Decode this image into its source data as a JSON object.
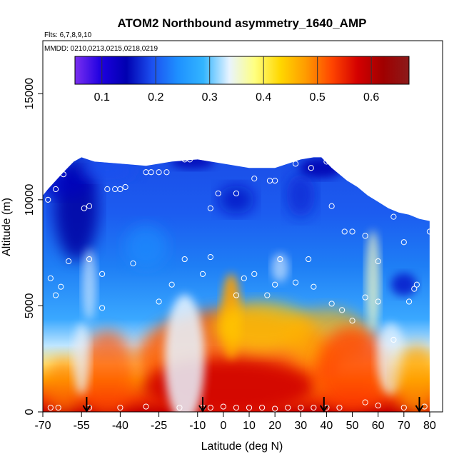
{
  "chart_data": {
    "type": "heatmap",
    "title": "ATOM2 Northbound asymmetry_1640_AMP",
    "flights_label": "Flts: 6,7,8,9,10",
    "dates_label": "MMDD: 0210,0213,0215,0218,0219",
    "xlabel": "Latitude (deg N)",
    "ylabel": "Altitude (m)",
    "xlim": [
      -70,
      85
    ],
    "ylim": [
      0,
      17500
    ],
    "x_ticks": [
      -70,
      -55,
      -40,
      -25,
      -10,
      0,
      10,
      20,
      30,
      40,
      50,
      60,
      70,
      80
    ],
    "x_tick_labels": [
      "-70",
      "-55",
      "-40",
      "-25",
      "-10",
      "0",
      "10",
      "20",
      "30",
      "40",
      "50",
      "60",
      "70",
      "80"
    ],
    "y_ticks": [
      0,
      5000,
      10000,
      15000
    ],
    "y_tick_labels": [
      "0",
      "5000",
      "10000",
      "15000"
    ],
    "colorbar": {
      "range": [
        0.05,
        0.67
      ],
      "ticks": [
        0.1,
        0.2,
        0.3,
        0.4,
        0.5,
        0.6
      ],
      "tick_labels": [
        "0.1",
        "0.2",
        "0.3",
        "0.4",
        "0.5",
        "0.6"
      ],
      "stops": [
        "#7b2ff0",
        "#1e00e0",
        "#0000b0",
        "#1c50f0",
        "#1e90ff",
        "#33b5ff",
        "#e8f4ff",
        "#ffff80",
        "#ffd700",
        "#ff9a00",
        "#ff4500",
        "#d40000",
        "#a00000",
        "#8b1a1a"
      ]
    },
    "domain_top_m": [
      [
        -70,
        10200
      ],
      [
        -68,
        10500
      ],
      [
        -65,
        10900
      ],
      [
        -62,
        11300
      ],
      [
        -58,
        11800
      ],
      [
        -55,
        12000
      ],
      [
        -50,
        11800
      ],
      [
        -40,
        11700
      ],
      [
        -30,
        11600
      ],
      [
        -20,
        11800
      ],
      [
        -10,
        11900
      ],
      [
        0,
        11700
      ],
      [
        10,
        11500
      ],
      [
        20,
        11500
      ],
      [
        30,
        11900
      ],
      [
        35,
        12000
      ],
      [
        38,
        12000
      ],
      [
        42,
        11500
      ],
      [
        45,
        11200
      ],
      [
        48,
        10900
      ],
      [
        52,
        10600
      ],
      [
        56,
        10200
      ],
      [
        60,
        9900
      ],
      [
        64,
        9600
      ],
      [
        68,
        9400
      ],
      [
        72,
        9300
      ],
      [
        76,
        9100
      ],
      [
        80,
        9000
      ]
    ],
    "surface_flight_markers_lat": [
      -53,
      -8,
      39,
      76
    ]
  }
}
